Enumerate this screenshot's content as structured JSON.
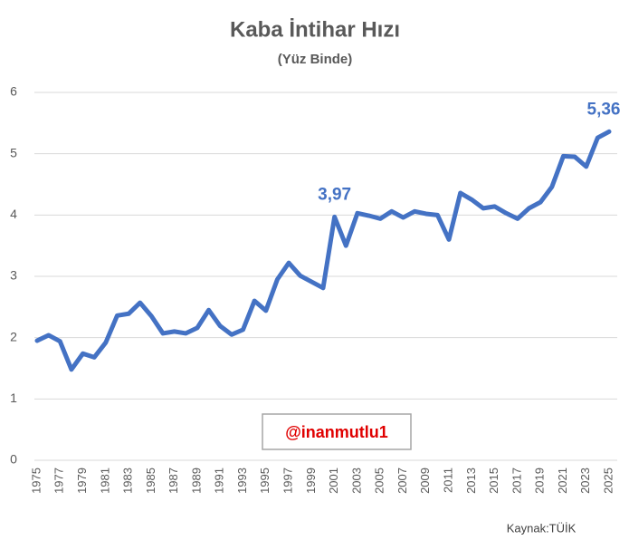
{
  "chart_data": {
    "type": "line",
    "title": "Kaba İntihar Hızı",
    "subtitle": "(Yüz Binde)",
    "x": [
      1975,
      1976,
      1977,
      1978,
      1979,
      1980,
      1981,
      1982,
      1983,
      1984,
      1985,
      1986,
      1987,
      1988,
      1989,
      1990,
      1991,
      1992,
      1993,
      1994,
      1995,
      1996,
      1997,
      1998,
      1999,
      2000,
      2001,
      2002,
      2003,
      2004,
      2005,
      2006,
      2007,
      2008,
      2009,
      2010,
      2011,
      2012,
      2013,
      2014,
      2015,
      2016,
      2017,
      2018,
      2019,
      2020,
      2021,
      2022,
      2023,
      2024,
      2025
    ],
    "series": [
      {
        "name": "Kaba İntihar Hızı",
        "color": "#4472c4",
        "values": [
          1.95,
          2.04,
          1.94,
          1.48,
          1.74,
          1.68,
          1.92,
          2.36,
          2.39,
          2.57,
          2.35,
          2.07,
          2.1,
          2.07,
          2.16,
          2.45,
          2.19,
          2.05,
          2.13,
          2.6,
          2.44,
          2.95,
          3.22,
          3.01,
          2.91,
          2.81,
          3.97,
          3.5,
          4.03,
          3.99,
          3.94,
          4.06,
          3.96,
          4.06,
          4.02,
          4.0,
          3.6,
          4.36,
          4.25,
          4.11,
          4.14,
          4.03,
          3.94,
          4.11,
          4.21,
          4.46,
          4.96,
          4.95,
          4.79,
          5.26,
          5.36
        ],
        "value_labels": [
          null,
          null,
          null,
          null,
          null,
          null,
          null,
          null,
          null,
          null,
          null,
          null,
          null,
          null,
          null,
          null,
          null,
          null,
          null,
          null,
          null,
          null,
          null,
          null,
          null,
          null,
          "3,97",
          null,
          null,
          null,
          null,
          null,
          null,
          null,
          null,
          null,
          null,
          null,
          null,
          null,
          null,
          null,
          null,
          null,
          null,
          null,
          null,
          null,
          null,
          null,
          "5,36"
        ]
      }
    ],
    "xlim": [
      1975,
      2025
    ],
    "xticks": [
      1975,
      1977,
      1979,
      1981,
      1983,
      1985,
      1987,
      1989,
      1991,
      1993,
      1995,
      1997,
      1999,
      2001,
      2003,
      2005,
      2007,
      2009,
      2011,
      2013,
      2015,
      2017,
      2019,
      2021,
      2023,
      2025
    ],
    "ylim": [
      0,
      6
    ],
    "yticks": [
      0,
      1,
      2,
      3,
      4,
      5,
      6
    ],
    "grid": true,
    "watermark": "@inanmutlu1",
    "source": "Kaynak:TÜİK"
  }
}
